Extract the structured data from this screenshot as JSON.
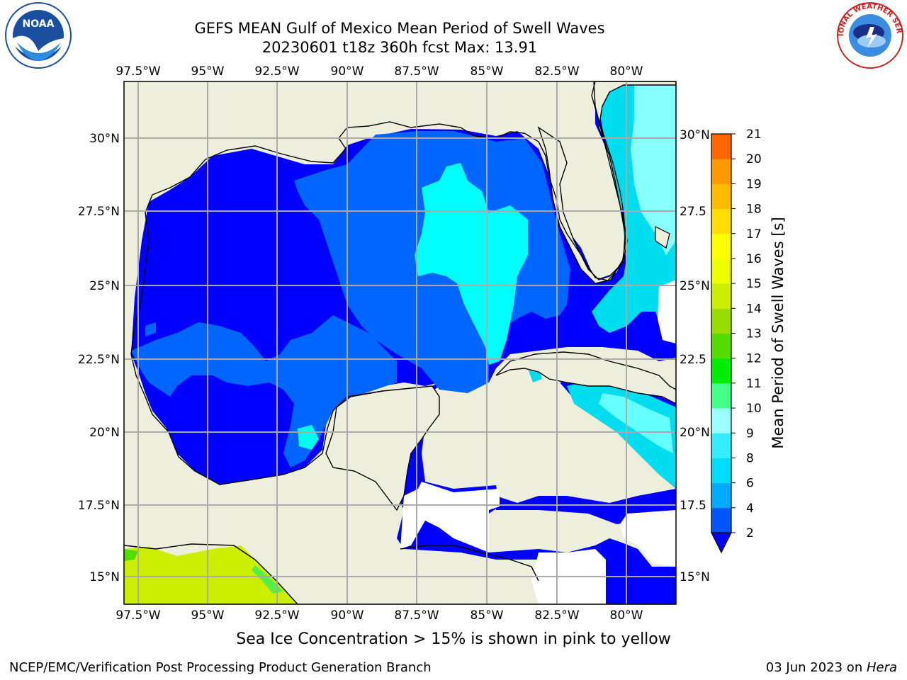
{
  "header": {
    "title_line1": "GEFS MEAN Gulf of Mexico Mean Period of Swell Waves",
    "title_line2": "20230601 t18z 360h fcst   Max: 13.91"
  },
  "logos": {
    "left": "NOAA",
    "right": "NATIONAL WEATHER SERVICE"
  },
  "map": {
    "lon_labels": [
      "97.5°W",
      "95°W",
      "92.5°W",
      "90°W",
      "87.5°W",
      "85°W",
      "82.5°W",
      "80°W"
    ],
    "lat_labels_left": [
      "30°N",
      "27.5°N",
      "25°N",
      "22.5°N",
      "20°N",
      "17.5°N",
      "15°N"
    ],
    "lat_labels_right": [
      "30°N",
      "27.5",
      "25°N",
      "22.5",
      "20°N",
      "17.5",
      "15°N"
    ]
  },
  "colorbar": {
    "label": "Mean Period of Swell Waves [s]",
    "ticks": [
      "2",
      "4",
      "6",
      "8",
      "9",
      "10",
      "11",
      "12",
      "13",
      "14",
      "15",
      "16",
      "17",
      "18",
      "19",
      "20",
      "21"
    ],
    "colors": [
      "#0055ff",
      "#00aaff",
      "#00ddff",
      "#33eeff",
      "#99ffff",
      "#44ff88",
      "#00ee00",
      "#55dd00",
      "#99dd00",
      "#ccee00",
      "#eeff00",
      "#ffff00",
      "#ffdd00",
      "#ffbb00",
      "#ff9900",
      "#ff6600",
      "#ff3300",
      "#ff0000"
    ]
  },
  "note": "Sea Ice Concentration > 15% is shown in pink to yellow",
  "footer": {
    "left": "NCEP/EMC/Verification Post Processing Product Generation Branch",
    "right_prefix": "03 Jun 2023 on ",
    "right_machine": "Hera"
  }
}
